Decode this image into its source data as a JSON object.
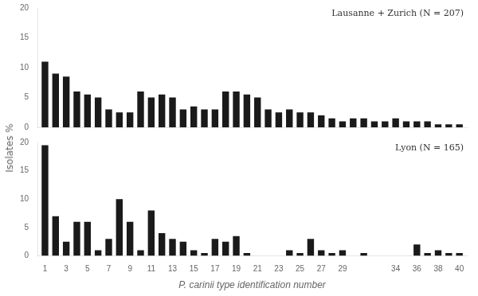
{
  "chart_data": [
    {
      "type": "bar",
      "annotation": "Lausanne + Zurich (N = 207)",
      "x": [
        1,
        2,
        3,
        4,
        5,
        6,
        7,
        8,
        9,
        10,
        11,
        12,
        13,
        14,
        15,
        16,
        17,
        18,
        19,
        20,
        21,
        22,
        23,
        24,
        25,
        26,
        27,
        28,
        29,
        30,
        31,
        32,
        33,
        34,
        35,
        36,
        37,
        38,
        39,
        40
      ],
      "values": [
        11,
        9,
        8.5,
        6,
        5.5,
        5,
        3,
        2.5,
        2.5,
        6,
        5,
        5.5,
        5,
        3,
        3.5,
        3,
        3,
        6,
        6,
        5.5,
        5,
        3,
        2.5,
        3,
        2.5,
        2.5,
        2,
        1.5,
        1,
        1.5,
        1.5,
        1,
        1,
        1.5,
        1,
        1,
        1,
        0.5,
        0.5,
        0.5
      ],
      "color": "#1a1a1a",
      "xlim": [
        0.3,
        40.7
      ],
      "xticks": [
        1,
        3,
        5,
        7,
        9,
        11,
        13,
        15,
        17,
        19,
        21,
        23,
        25,
        27,
        29,
        34,
        36,
        38,
        40
      ],
      "ylim": [
        0,
        20
      ],
      "yticks": [
        0,
        5,
        10,
        15,
        20
      ],
      "ylabel": "Isolates %",
      "grid": false,
      "tick_labels": "y"
    },
    {
      "type": "bar",
      "annotation": "Lyon (N = 165)",
      "x": [
        1,
        2,
        3,
        4,
        5,
        6,
        7,
        8,
        9,
        10,
        11,
        12,
        13,
        14,
        15,
        16,
        17,
        18,
        19,
        20,
        21,
        22,
        23,
        24,
        25,
        26,
        27,
        28,
        29,
        30,
        31,
        32,
        33,
        34,
        35,
        36,
        37,
        38,
        39,
        40
      ],
      "values": [
        19.5,
        7,
        2.5,
        6,
        6,
        1,
        3,
        10,
        6,
        1,
        8,
        4,
        3,
        2.5,
        1,
        0.5,
        3,
        2.5,
        3.5,
        0.5,
        0,
        0,
        0,
        1,
        0.5,
        3,
        1,
        0.5,
        1,
        0,
        0.5,
        0,
        0,
        0,
        0,
        2,
        0.5,
        1,
        0.5,
        0.5
      ],
      "color": "#1a1a1a",
      "xlim": [
        0.3,
        40.7
      ],
      "xticks": [
        1,
        3,
        5,
        7,
        9,
        11,
        13,
        15,
        17,
        19,
        21,
        23,
        25,
        27,
        29,
        34,
        36,
        38,
        40
      ],
      "ylim": [
        0,
        20
      ],
      "yticks": [
        0,
        5,
        10,
        15,
        20
      ],
      "xlabel": "P. carinii type identification number",
      "grid": false
    }
  ]
}
